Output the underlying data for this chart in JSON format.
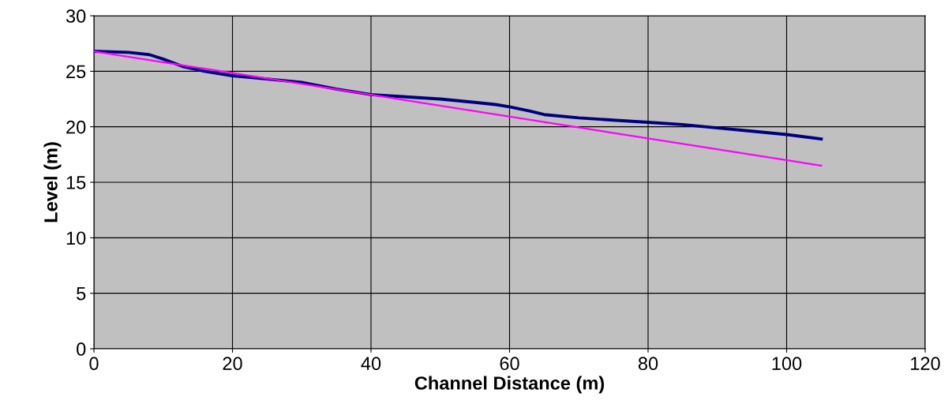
{
  "chart_data": {
    "type": "line",
    "xlabel": "Channel Distance (m)",
    "ylabel": "Level (m)",
    "xlim": [
      0,
      120
    ],
    "xticks": [
      0,
      20,
      40,
      60,
      80,
      100,
      120
    ],
    "ylim": [
      0,
      30
    ],
    "yticks": [
      0,
      5,
      10,
      15,
      20,
      25,
      30
    ],
    "grid": true,
    "marker": "none",
    "line_style": "solid",
    "series": [
      {
        "color": "#000080",
        "x": [
          0,
          5,
          8,
          10,
          13,
          16,
          20,
          25,
          30,
          35,
          40,
          45,
          50,
          55,
          58,
          60,
          63,
          65,
          70,
          75,
          80,
          85,
          90,
          95,
          100,
          105
        ],
        "values": [
          26.8,
          26.7,
          26.5,
          26.1,
          25.4,
          25.0,
          24.6,
          24.3,
          24.0,
          23.4,
          22.9,
          22.7,
          22.5,
          22.2,
          22.0,
          21.8,
          21.4,
          21.1,
          20.8,
          20.6,
          20.4,
          20.2,
          19.9,
          19.6,
          19.3,
          18.9
        ]
      },
      {
        "color": "#ff00ff",
        "x": [
          0,
          105
        ],
        "values": [
          26.8,
          16.5
        ]
      }
    ]
  }
}
